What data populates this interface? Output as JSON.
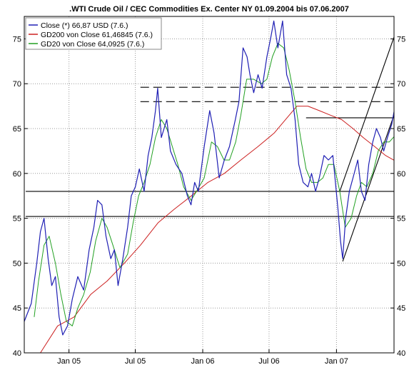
{
  "chart_data": {
    "type": "line",
    "title": ".WTI Crude Oil / CEC Commodities Ex. Center NY 01.09.2004 bis 07.06.2007",
    "xlabel": "",
    "ylabel": "",
    "x_range": [
      "2004-09-01",
      "2007-06-07"
    ],
    "ylim": [
      40,
      77.5
    ],
    "y_ticks": [
      40,
      45,
      50,
      55,
      60,
      65,
      70,
      75
    ],
    "x_ticks": [
      {
        "date": "2005-01-01",
        "label": "Jan 05"
      },
      {
        "date": "2005-07-01",
        "label": "Jul 05"
      },
      {
        "date": "2006-01-01",
        "label": "Jan 06"
      },
      {
        "date": "2006-07-01",
        "label": "Jul 06"
      },
      {
        "date": "2007-01-01",
        "label": "Jan 07"
      }
    ],
    "grid": "dotted",
    "legend_position": "top-left",
    "colors": {
      "close": "#1f1fb4",
      "gd200": "#cc2020",
      "gd20": "#22a022",
      "lines": "#000000",
      "frame": "#000000"
    },
    "series": [
      {
        "name": "Close (*) 66,87 USD (7.6.)",
        "key": "close",
        "points": [
          [
            "2004-09-01",
            43.5
          ],
          [
            "2004-09-20",
            45.5
          ],
          [
            "2004-10-05",
            50
          ],
          [
            "2004-10-15",
            53.5
          ],
          [
            "2004-10-25",
            55
          ],
          [
            "2004-11-05",
            50.5
          ],
          [
            "2004-11-15",
            47.5
          ],
          [
            "2004-11-25",
            48.5
          ],
          [
            "2004-12-05",
            44
          ],
          [
            "2004-12-15",
            42
          ],
          [
            "2004-12-28",
            43
          ],
          [
            "2005-01-10",
            46
          ],
          [
            "2005-01-25",
            48.5
          ],
          [
            "2005-02-10",
            47
          ],
          [
            "2005-02-25",
            51.5
          ],
          [
            "2005-03-10",
            54
          ],
          [
            "2005-03-20",
            57
          ],
          [
            "2005-04-01",
            56.5
          ],
          [
            "2005-04-12",
            53
          ],
          [
            "2005-04-25",
            50.5
          ],
          [
            "2005-05-05",
            51.5
          ],
          [
            "2005-05-15",
            47.5
          ],
          [
            "2005-05-28",
            50.5
          ],
          [
            "2005-06-10",
            54
          ],
          [
            "2005-06-20",
            57.5
          ],
          [
            "2005-07-01",
            58.5
          ],
          [
            "2005-07-12",
            60.5
          ],
          [
            "2005-07-25",
            58
          ],
          [
            "2005-08-05",
            62
          ],
          [
            "2005-08-15",
            64
          ],
          [
            "2005-08-25",
            67
          ],
          [
            "2005-08-31",
            69.5
          ],
          [
            "2005-09-10",
            64
          ],
          [
            "2005-09-25",
            66
          ],
          [
            "2005-10-05",
            62.5
          ],
          [
            "2005-10-20",
            61
          ],
          [
            "2005-11-05",
            60
          ],
          [
            "2005-11-20",
            57.5
          ],
          [
            "2005-11-30",
            56.5
          ],
          [
            "2005-12-10",
            59
          ],
          [
            "2005-12-20",
            58
          ],
          [
            "2006-01-05",
            63
          ],
          [
            "2006-01-20",
            67
          ],
          [
            "2006-02-01",
            64.5
          ],
          [
            "2006-02-15",
            59.5
          ],
          [
            "2006-03-01",
            61.5
          ],
          [
            "2006-03-15",
            63
          ],
          [
            "2006-03-31",
            66
          ],
          [
            "2006-04-10",
            68
          ],
          [
            "2006-04-21",
            74
          ],
          [
            "2006-05-02",
            73
          ],
          [
            "2006-05-10",
            71
          ],
          [
            "2006-05-20",
            69
          ],
          [
            "2006-06-01",
            71
          ],
          [
            "2006-06-12",
            69.5
          ],
          [
            "2006-06-25",
            73
          ],
          [
            "2006-07-05",
            75
          ],
          [
            "2006-07-14",
            77
          ],
          [
            "2006-07-25",
            74
          ],
          [
            "2006-08-07",
            77
          ],
          [
            "2006-08-18",
            71
          ],
          [
            "2006-08-30",
            69.5
          ],
          [
            "2006-09-10",
            66
          ],
          [
            "2006-09-20",
            61
          ],
          [
            "2006-10-02",
            59
          ],
          [
            "2006-10-15",
            58.5
          ],
          [
            "2006-10-25",
            60
          ],
          [
            "2006-11-05",
            58
          ],
          [
            "2006-11-15",
            59.5
          ],
          [
            "2006-11-28",
            62
          ],
          [
            "2006-12-10",
            61.5
          ],
          [
            "2006-12-22",
            62
          ],
          [
            "2007-01-05",
            56
          ],
          [
            "2007-01-12",
            52.5
          ],
          [
            "2007-01-18",
            50.5
          ],
          [
            "2007-01-26",
            55
          ],
          [
            "2007-02-05",
            58
          ],
          [
            "2007-02-15",
            59.5
          ],
          [
            "2007-02-28",
            61.5
          ],
          [
            "2007-03-10",
            58
          ],
          [
            "2007-03-20",
            57
          ],
          [
            "2007-03-30",
            61
          ],
          [
            "2007-04-10",
            63.5
          ],
          [
            "2007-04-20",
            65
          ],
          [
            "2007-05-01",
            64
          ],
          [
            "2007-05-10",
            62.5
          ],
          [
            "2007-05-20",
            64
          ],
          [
            "2007-06-01",
            65.5
          ],
          [
            "2007-06-07",
            66.87
          ]
        ]
      },
      {
        "name": "GD200 von Close 61,46845 (7.6.)",
        "key": "gd200",
        "points": [
          [
            "2004-10-15",
            40
          ],
          [
            "2004-12-01",
            43
          ],
          [
            "2005-01-15",
            44
          ],
          [
            "2005-03-01",
            46.5
          ],
          [
            "2005-04-15",
            48
          ],
          [
            "2005-06-01",
            50
          ],
          [
            "2005-07-15",
            52
          ],
          [
            "2005-09-01",
            54.5
          ],
          [
            "2005-10-15",
            56
          ],
          [
            "2005-12-01",
            57.5
          ],
          [
            "2006-01-15",
            59
          ],
          [
            "2006-03-01",
            60
          ],
          [
            "2006-04-15",
            61.5
          ],
          [
            "2006-06-01",
            63
          ],
          [
            "2006-07-15",
            64.5
          ],
          [
            "2006-08-15",
            66
          ],
          [
            "2006-09-15",
            67.5
          ],
          [
            "2006-10-15",
            67.5
          ],
          [
            "2006-11-15",
            67
          ],
          [
            "2006-12-15",
            66.5
          ],
          [
            "2007-01-15",
            66
          ],
          [
            "2007-02-15",
            65
          ],
          [
            "2007-03-15",
            64
          ],
          [
            "2007-04-15",
            63
          ],
          [
            "2007-05-15",
            62
          ],
          [
            "2007-06-07",
            61.47
          ]
        ]
      },
      {
        "name": "GD20 von Close 64,0925 (7.6.)",
        "key": "gd20",
        "points": [
          [
            "2004-09-28",
            44
          ],
          [
            "2004-10-10",
            48
          ],
          [
            "2004-10-25",
            52
          ],
          [
            "2004-11-08",
            53
          ],
          [
            "2004-11-25",
            50
          ],
          [
            "2004-12-10",
            46.5
          ],
          [
            "2004-12-25",
            43.5
          ],
          [
            "2005-01-10",
            43
          ],
          [
            "2005-01-25",
            45
          ],
          [
            "2005-02-10",
            46.5
          ],
          [
            "2005-02-28",
            49
          ],
          [
            "2005-03-15",
            52.5
          ],
          [
            "2005-04-01",
            55
          ],
          [
            "2005-04-15",
            54
          ],
          [
            "2005-05-01",
            52
          ],
          [
            "2005-05-20",
            49.5
          ],
          [
            "2005-06-10",
            51
          ],
          [
            "2005-06-25",
            54.5
          ],
          [
            "2005-07-10",
            57.5
          ],
          [
            "2005-07-25",
            59
          ],
          [
            "2005-08-10",
            61
          ],
          [
            "2005-08-25",
            64
          ],
          [
            "2005-09-10",
            66
          ],
          [
            "2005-09-25",
            65
          ],
          [
            "2005-10-10",
            63
          ],
          [
            "2005-10-25",
            61
          ],
          [
            "2005-11-10",
            58.5
          ],
          [
            "2005-11-30",
            57
          ],
          [
            "2005-12-15",
            58
          ],
          [
            "2006-01-05",
            59.5
          ],
          [
            "2006-01-25",
            63.5
          ],
          [
            "2006-02-10",
            63
          ],
          [
            "2006-02-28",
            61.5
          ],
          [
            "2006-03-15",
            61.5
          ],
          [
            "2006-04-01",
            63.5
          ],
          [
            "2006-04-15",
            66.5
          ],
          [
            "2006-05-01",
            70.5
          ],
          [
            "2006-05-20",
            70.5
          ],
          [
            "2006-06-10",
            70
          ],
          [
            "2006-06-25",
            70.5
          ],
          [
            "2006-07-10",
            73
          ],
          [
            "2006-07-25",
            74.5
          ],
          [
            "2006-08-10",
            74
          ],
          [
            "2006-08-25",
            71.5
          ],
          [
            "2006-09-10",
            68
          ],
          [
            "2006-09-25",
            64
          ],
          [
            "2006-10-10",
            60.5
          ],
          [
            "2006-10-25",
            59
          ],
          [
            "2006-11-10",
            59
          ],
          [
            "2006-11-25",
            59.5
          ],
          [
            "2006-12-10",
            61
          ],
          [
            "2006-12-25",
            61
          ],
          [
            "2007-01-10",
            58
          ],
          [
            "2007-01-25",
            54
          ],
          [
            "2007-02-10",
            55
          ],
          [
            "2007-02-25",
            57.5
          ],
          [
            "2007-03-10",
            59
          ],
          [
            "2007-03-25",
            58.5
          ],
          [
            "2007-04-10",
            60
          ],
          [
            "2007-04-25",
            62.5
          ],
          [
            "2007-05-10",
            63.5
          ],
          [
            "2007-05-25",
            63.5
          ],
          [
            "2007-06-07",
            64.09
          ]
        ]
      }
    ],
    "reference_lines": [
      {
        "style": "solid",
        "x1": "2004-09-05",
        "y1": 55.2,
        "x2": "2007-06-07",
        "y2": 55.2
      },
      {
        "style": "solid",
        "x1": "2004-09-05",
        "y1": 58.0,
        "x2": "2007-06-07",
        "y2": 58.0
      },
      {
        "style": "dashed",
        "x1": "2005-07-15",
        "y1": 68.0,
        "x2": "2007-06-07",
        "y2": 68.0
      },
      {
        "style": "dashed",
        "x1": "2005-07-15",
        "y1": 69.6,
        "x2": "2007-06-07",
        "y2": 69.6
      },
      {
        "style": "solid",
        "x1": "2006-10-10",
        "y1": 66.2,
        "x2": "2007-06-07",
        "y2": 66.2
      },
      {
        "style": "solid",
        "x1": "2007-01-18",
        "y1": 50.2,
        "x2": "2007-06-07",
        "y2": 66.5
      },
      {
        "style": "solid",
        "x1": "2007-01-10",
        "y1": 58.0,
        "x2": "2007-06-07",
        "y2": 75.2
      }
    ]
  }
}
